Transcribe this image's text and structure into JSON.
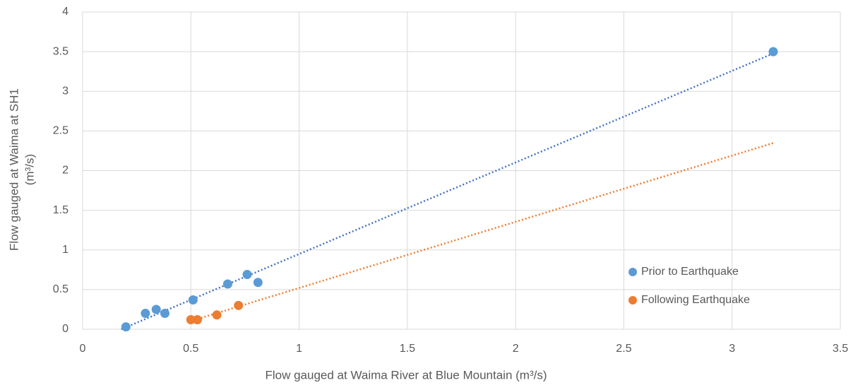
{
  "chart_data": {
    "type": "scatter",
    "xlabel": "Flow gauged at Waima River at Blue Mountain (m³/s)",
    "ylabel": [
      "Flow gauged at Waima at SH1",
      "(m³/s)"
    ],
    "series": [
      {
        "name": "Prior to Earthquake",
        "color": "#5b9bd5",
        "trend_color": "#4472c4",
        "x": [
          0.2,
          0.29,
          0.34,
          0.38,
          0.51,
          0.67,
          0.76,
          0.81,
          3.19
        ],
        "values": [
          0.03,
          0.2,
          0.25,
          0.2,
          0.37,
          0.57,
          0.69,
          0.59,
          3.5
        ]
      },
      {
        "name": "Following Earthquake",
        "color": "#ed7d31",
        "trend_color": "#ed7d31",
        "x": [
          0.5,
          0.53,
          0.62,
          0.72
        ],
        "values": [
          0.12,
          0.12,
          0.18,
          0.3
        ]
      }
    ],
    "trendline": true,
    "xlim": [
      0,
      3.5
    ],
    "xticks": [
      0,
      0.5,
      1,
      1.5,
      2,
      2.5,
      3,
      3.5
    ],
    "ylim": [
      0,
      4
    ],
    "yticks": [
      0,
      0.5,
      1,
      1.5,
      2,
      2.5,
      3,
      3.5,
      4
    ],
    "grid": true
  }
}
